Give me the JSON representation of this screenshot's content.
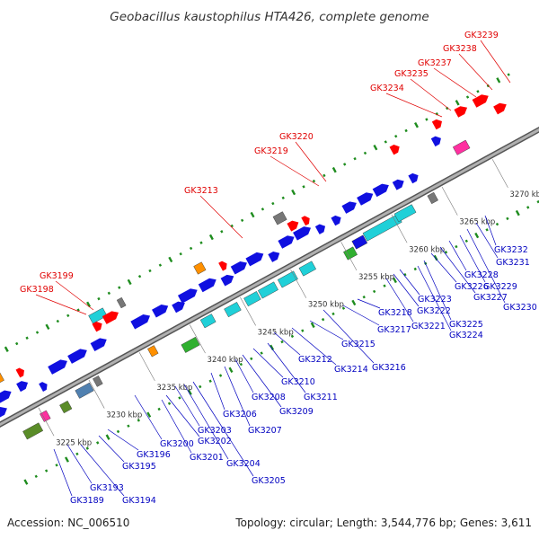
{
  "title": "Geobacillus kaustophilus HTA426, complete genome",
  "footer": {
    "accession": "Accession: NC_006510",
    "topology": "Topology: circular; Length: 3,544,776 bp; Genes: 3,611"
  },
  "colors": {
    "backbone": "#888888",
    "dots": "#1e8c1e",
    "red_label": "#e00000",
    "blue_label": "#0000c0",
    "red_gene": "#ff0000",
    "blue_gene": "#1010e0",
    "cyan_gene": "#20d0d8",
    "green_gene": "#30b030",
    "orange_gene": "#ff9000",
    "olive_gene": "#5a8c28",
    "gray_gene": "#777777",
    "magenta_gene": "#ff30a0",
    "steel_gene": "#5080b0"
  },
  "kbp_ticks": [
    "3225 kbp",
    "3230 kbp",
    "3235 kbp",
    "3240 kbp",
    "3245 kbp",
    "3250 kbp",
    "3255 kbp",
    "3260 kbp",
    "3265 kbp",
    "3270 kbp"
  ],
  "red_labels": [
    "GK3198",
    "GK3199",
    "GK3213",
    "GK3219",
    "GK3220",
    "GK3234",
    "GK3235",
    "GK3237",
    "GK3238",
    "GK3239"
  ],
  "blue_labels": [
    "GK3189",
    "GK3193",
    "GK3194",
    "GK3195",
    "GK3196",
    "GK3200",
    "GK3201",
    "GK3202",
    "GK3203",
    "GK3204",
    "GK3205",
    "GK3206",
    "GK3207",
    "GK3208",
    "GK3209",
    "GK3210",
    "GK3211",
    "GK3212",
    "GK3214",
    "GK3215",
    "GK3216",
    "GK3217",
    "GK3218",
    "GK3221",
    "GK3222",
    "GK3223",
    "GK3224",
    "GK3225",
    "GK3226",
    "GK3227",
    "GK3228",
    "GK3229",
    "GK3230",
    "GK3231",
    "GK3232"
  ]
}
